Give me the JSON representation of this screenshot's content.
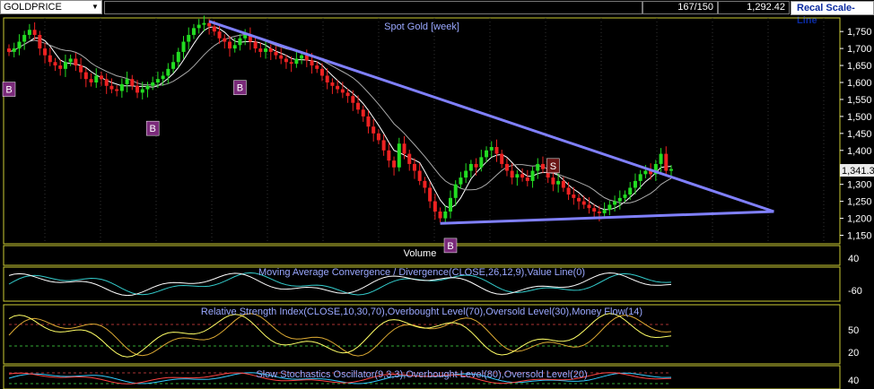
{
  "toolbar": {
    "symbol": "GOLDPRICE",
    "bars": "167/150",
    "last_price": "1,292.42",
    "recal_button": "Recal Scale-Line"
  },
  "colors": {
    "up": "#22dd22",
    "down": "#ee2222",
    "trendline": "#8080ff",
    "ma_fast": "#ffffff",
    "ma_slow": "#aaaaaa",
    "panel_border": "#cccc33",
    "title_text": "#9aa8ff",
    "signal_box": "#7a2a7a"
  },
  "chart_data": [
    {
      "type": "candlestick",
      "title": "Spot Gold [week]",
      "ylim": [
        1125,
        1790
      ],
      "yticks": [
        "1,750",
        "1,700",
        "1,650",
        "1,600",
        "1,550",
        "1,500",
        "1,450",
        "1,400",
        "1,350",
        "1,300",
        "1,250",
        "1,200",
        "1,150"
      ],
      "ytick_values": [
        1750,
        1700,
        1650,
        1600,
        1550,
        1500,
        1450,
        1400,
        1350,
        1300,
        1250,
        1200,
        1150
      ],
      "last_label": "1,341.3",
      "last_value": 1341.3,
      "close_series": [
        1690,
        1700,
        1720,
        1740,
        1755,
        1740,
        1700,
        1680,
        1660,
        1650,
        1640,
        1660,
        1670,
        1650,
        1630,
        1610,
        1600,
        1620,
        1610,
        1590,
        1580,
        1575,
        1595,
        1610,
        1590,
        1570,
        1580,
        1590,
        1600,
        1610,
        1620,
        1640,
        1660,
        1690,
        1720,
        1740,
        1760,
        1770,
        1775,
        1765,
        1750,
        1730,
        1720,
        1700,
        1710,
        1730,
        1740,
        1720,
        1700,
        1690,
        1700,
        1690,
        1680,
        1670,
        1660,
        1655,
        1670,
        1680,
        1665,
        1650,
        1640,
        1620,
        1600,
        1590,
        1580,
        1570,
        1560,
        1540,
        1520,
        1500,
        1470,
        1450,
        1430,
        1400,
        1370,
        1350,
        1420,
        1390,
        1360,
        1340,
        1310,
        1290,
        1250,
        1220,
        1200,
        1220,
        1260,
        1300,
        1320,
        1340,
        1360,
        1350,
        1380,
        1400,
        1410,
        1390,
        1360,
        1340,
        1320,
        1330,
        1320,
        1310,
        1340,
        1360,
        1345,
        1320,
        1300,
        1310,
        1290,
        1270,
        1260,
        1250,
        1240,
        1230,
        1220,
        1215,
        1225,
        1240,
        1250,
        1260,
        1270,
        1290,
        1310,
        1330,
        1340,
        1330,
        1360,
        1390,
        1340,
        1345
      ],
      "trendlines": [
        {
          "x1": 39,
          "y1": 1780,
          "x2": 149,
          "y2": 1220
        },
        {
          "x1": 84,
          "y1": 1185,
          "x2": 149,
          "y2": 1220
        }
      ],
      "signals": [
        {
          "label": "B",
          "index": 0,
          "price": 1580
        },
        {
          "label": "B",
          "index": 28,
          "price": 1465
        },
        {
          "label": "B",
          "index": 45,
          "price": 1585
        },
        {
          "label": "B",
          "index": 86,
          "price": 1120
        },
        {
          "label": "S",
          "index": 106,
          "price": 1355
        }
      ]
    },
    {
      "type": "bar",
      "title": "Volume",
      "yticks": [
        "40"
      ]
    },
    {
      "type": "line",
      "title": "Moving Average Convergence / Divergence(CLOSE,26,12,9),Value Line(0)",
      "yticks": [
        "-60"
      ]
    },
    {
      "type": "line",
      "title": "Relative Strength Index(CLOSE,10,30,70),Overbought Level(70),Oversold Level(30),Money Flow(14)",
      "yticks": [
        "50",
        "20"
      ],
      "levels": [
        70,
        30
      ]
    },
    {
      "type": "line",
      "title": "Slow Stochastics Oscillator(9,3,3),Overbought Level(80),Oversold Level(20)",
      "yticks": [
        "40"
      ],
      "levels": [
        80,
        20
      ]
    }
  ]
}
